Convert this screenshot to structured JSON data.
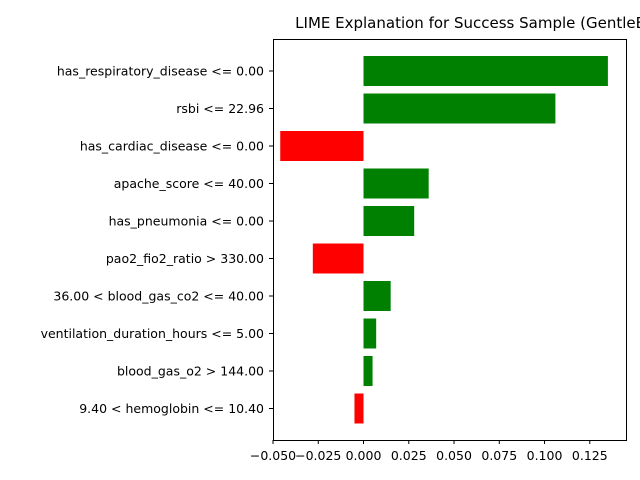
{
  "chart_data": {
    "type": "bar",
    "orientation": "horizontal",
    "title": "LIME Explanation for Success Sample (GentleBoost)",
    "xlabel": "",
    "ylabel": "",
    "xlim": [
      -0.05,
      0.145
    ],
    "xticks": [
      -0.05,
      -0.025,
      0.0,
      0.025,
      0.05,
      0.075,
      0.1,
      0.125
    ],
    "xtick_labels": [
      "−0.050",
      "−0.025",
      "0.000",
      "0.025",
      "0.050",
      "0.075",
      "0.100",
      "0.125"
    ],
    "grid": false,
    "categories": [
      "has_respiratory_disease <= 0.00",
      "rsbi <= 22.96",
      "has_cardiac_disease <= 0.00",
      "apache_score <= 40.00",
      "has_pneumonia <= 0.00",
      "pao2_fio2_ratio > 330.00",
      "36.00 < blood_gas_co2 <= 40.00",
      "ventilation_duration_hours <= 5.00",
      "blood_gas_o2 > 144.00",
      "9.40 < hemoglobin <= 10.40"
    ],
    "values": [
      0.135,
      0.106,
      -0.046,
      0.036,
      0.028,
      -0.028,
      0.015,
      0.007,
      0.005,
      -0.005
    ],
    "colors": {
      "positive": "#008000",
      "negative": "#ff0000"
    }
  }
}
